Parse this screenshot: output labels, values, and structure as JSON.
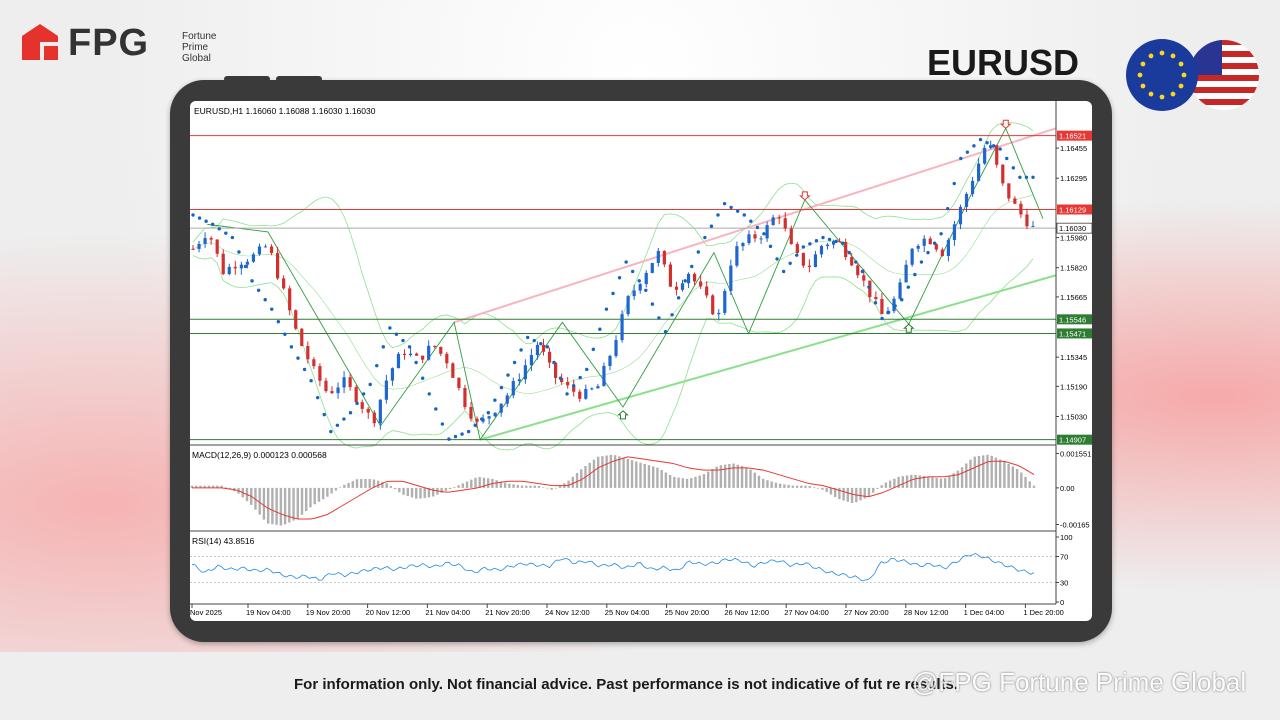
{
  "brand": {
    "name": "FPG",
    "subtitle": [
      "Fortune",
      "Prime",
      "Global"
    ],
    "color": "#e5322d"
  },
  "symbol": "EURUSD",
  "disclaimer": "For information only. Not financial advice. Past performance is not indicative of fut re results.",
  "watermark": "@FPG Fortune Prime Global",
  "flags": [
    "eu-flag-icon",
    "us-flag-icon"
  ],
  "chart_data": [
    {
      "type": "candlestick",
      "header": "EURUSD,H1  1.16060 1.16088 1.16030 1.16030",
      "timeframe": "H1",
      "ylim": [
        1.149,
        1.1662
      ],
      "y_ticks": [
        "1.16455",
        "1.16295",
        "1.15980",
        "1.15820",
        "1.15665",
        "1.15345",
        "1.15190",
        "1.15030"
      ],
      "x_ticks": [
        "Nov 2025",
        "19 Nov 04:00",
        "19 Nov 20:00",
        "20 Nov 12:00",
        "21 Nov 04:00",
        "21 Nov 20:00",
        "24 Nov 12:00",
        "25 Nov 04:00",
        "25 Nov 20:00",
        "26 Nov 12:00",
        "27 Nov 04:00",
        "27 Nov 20:00",
        "28 Nov 12:00",
        "1 Dec 04:00",
        "1 Dec 20:00"
      ],
      "horizontal_levels": [
        {
          "label": "1.16521",
          "value": 1.16521,
          "color": "#e53935"
        },
        {
          "label": "1.16129",
          "value": 1.16129,
          "color": "#e53935"
        },
        {
          "label": "1.15546",
          "value": 1.15546,
          "color": "#2e7d32"
        },
        {
          "label": "1.15471",
          "value": 1.15471,
          "color": "#2e7d32"
        },
        {
          "label": "1.14907",
          "value": 1.14907,
          "color": "#2e7d32"
        }
      ],
      "current_price": {
        "label": "1.16030",
        "value": 1.1603
      },
      "close_path": [
        1.1592,
        1.1602,
        1.158,
        1.1585,
        1.1588,
        1.1594,
        1.157,
        1.1545,
        1.1528,
        1.1515,
        1.1522,
        1.1512,
        1.15,
        1.1525,
        1.1538,
        1.1533,
        1.1541,
        1.1532,
        1.1512,
        1.1498,
        1.1506,
        1.1515,
        1.1528,
        1.1542,
        1.1525,
        1.1518,
        1.1514,
        1.1519,
        1.154,
        1.1565,
        1.1578,
        1.159,
        1.157,
        1.158,
        1.1568,
        1.1555,
        1.159,
        1.1597,
        1.16,
        1.1612,
        1.159,
        1.1582,
        1.1595,
        1.1596,
        1.1585,
        1.157,
        1.1556,
        1.1568,
        1.1595,
        1.1598,
        1.159,
        1.161,
        1.163,
        1.165,
        1.1625,
        1.1612,
        1.1603
      ],
      "parabolic_sar": [
        1.161,
        1.1605,
        1.1598,
        1.1575,
        1.156,
        1.154,
        1.1522,
        1.1495,
        1.1505,
        1.152,
        1.155,
        1.154,
        1.1515,
        1.1491,
        1.1495,
        1.1505,
        1.1525,
        1.1545,
        1.154,
        1.1515,
        1.1528,
        1.156,
        1.1585,
        1.157,
        1.1548,
        1.1575,
        1.1598,
        1.1616,
        1.161,
        1.16,
        1.158,
        1.1593,
        1.1598,
        1.1595,
        1.158,
        1.1555,
        1.1565,
        1.1585,
        1.16,
        1.164,
        1.165,
        1.1645,
        1.163
      ],
      "trendlines": [
        {
          "color": "#f8b4c0",
          "from": [
            0.305,
            1.1553
          ],
          "to": [
            1.0,
            1.1656
          ]
        },
        {
          "color": "#8be08b",
          "from": [
            0.335,
            1.14907
          ],
          "to": [
            1.0,
            1.1578
          ]
        }
      ],
      "signals": [
        {
          "type": "down",
          "x": 0.71,
          "value": 1.1618
        },
        {
          "type": "down",
          "x": 0.942,
          "value": 1.1656
        },
        {
          "type": "up",
          "x": 0.5,
          "value": 1.1506
        },
        {
          "type": "up",
          "x": 0.83,
          "value": 1.1552
        }
      ]
    },
    {
      "type": "bar",
      "header": "MACD(12,26,9) 0.000123 0.000568",
      "y_ticks": [
        "0.001551",
        "0.00",
        "-0.00165"
      ],
      "ylim": [
        -0.00185,
        0.00175
      ],
      "histogram": [
        0.0001,
        0.0001,
        0.0001,
        -0.0002,
        -0.0008,
        -0.0016,
        -0.0017,
        -0.0014,
        -0.0008,
        -0.0004,
        0.0001,
        0.0004,
        0.0004,
        0.0002,
        -0.0003,
        -0.0005,
        -0.0004,
        -0.0001,
        0.0002,
        0.0005,
        0.0004,
        0.0002,
        0.0001,
        0.0001,
        -0.0001,
        0.0003,
        0.0009,
        0.0014,
        0.0015,
        0.0013,
        0.0011,
        0.0009,
        0.0005,
        0.0004,
        0.0006,
        0.001,
        0.0011,
        0.0009,
        0.0004,
        0.0002,
        0.0001,
        0.0001,
        -0.0001,
        -0.0005,
        -0.0007,
        -0.0004,
        0.0002,
        0.0005,
        0.0006,
        0.0005,
        0.0004,
        0.0008,
        0.0014,
        0.0015,
        0.0012,
        0.0008,
        0.0001
      ],
      "signal_line": [
        0.0,
        0.0,
        0.0,
        -0.0001,
        -0.0004,
        -0.0009,
        -0.0012,
        -0.0014,
        -0.0014,
        -0.0012,
        -0.0008,
        -0.0004,
        0.0,
        0.0003,
        0.0003,
        0.0001,
        -0.0001,
        -0.0002,
        -0.0001,
        0.0,
        0.0002,
        0.0003,
        0.0003,
        0.0002,
        0.0001,
        0.0001,
        0.0004,
        0.0009,
        0.0012,
        0.0014,
        0.0013,
        0.0012,
        0.0011,
        0.0009,
        0.0008,
        0.0008,
        0.0009,
        0.0009,
        0.0008,
        0.0006,
        0.0004,
        0.0002,
        0.0001,
        -0.0001,
        -0.0003,
        -0.0004,
        -0.0002,
        0.0001,
        0.0004,
        0.0005,
        0.0005,
        0.0006,
        0.0009,
        0.0012,
        0.0012,
        0.001,
        0.0006
      ]
    },
    {
      "type": "line",
      "header": "RSI(14) 43.8516",
      "y_ticks": [
        "100",
        "70",
        "30",
        "0"
      ],
      "ylim": [
        0,
        100
      ],
      "levels": [
        70,
        30
      ],
      "values": [
        58,
        45,
        55,
        50,
        52,
        48,
        50,
        42,
        38,
        40,
        34,
        45,
        41,
        46,
        50,
        53,
        50,
        55,
        57,
        54,
        60,
        56,
        45,
        52,
        49,
        55,
        59,
        57,
        55,
        68,
        60,
        63,
        55,
        58,
        52,
        60,
        50,
        53,
        48,
        62,
        58,
        60,
        66,
        64,
        55,
        62,
        64,
        56,
        60,
        52,
        45,
        42,
        38,
        32,
        60,
        66,
        62,
        56,
        58,
        52,
        63,
        74,
        70,
        62,
        55,
        48,
        44
      ]
    }
  ]
}
